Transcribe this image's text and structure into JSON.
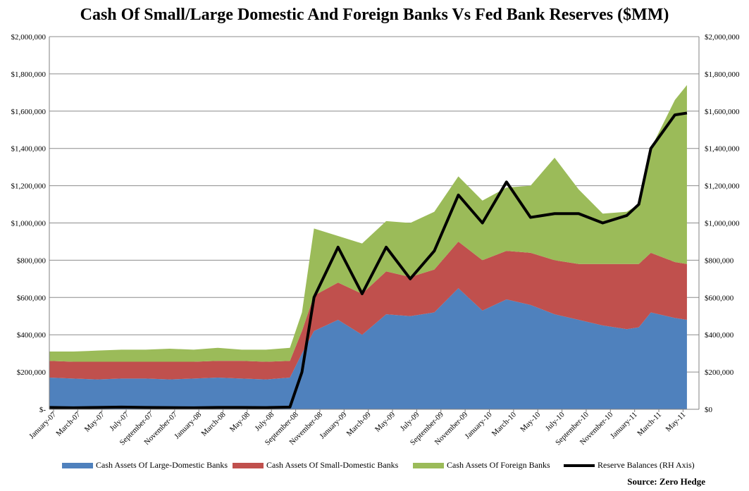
{
  "title": "Cash Of Small/Large Domestic And Foreign Banks Vs Fed Bank Reserves ($MM)",
  "source": "Source: Zero Hedge",
  "colors": {
    "large_domestic": "#4f81bd",
    "small_domestic": "#c0504d",
    "foreign": "#9bbb59",
    "reserves": "#000000",
    "gridline": "#8c8c8c"
  },
  "chart_data": {
    "type": "area",
    "x_tick_labels": [
      "January-07",
      "March-07",
      "May-07",
      "July-07",
      "September-07",
      "November-07",
      "January-08",
      "March-08",
      "May-08",
      "July-08",
      "September-08",
      "November-08",
      "January-09",
      "March-09",
      "May-09",
      "July-09",
      "September-09",
      "November-09",
      "January-10",
      "March-10",
      "May-10",
      "July-10",
      "September-10",
      "November-10",
      "January-11",
      "March-11",
      "May-11"
    ],
    "y_tick_labels_left": [
      "$-",
      "$200,000",
      "$400,000",
      "$600,000",
      "$800,000",
      "$1,000,000",
      "$1,200,000",
      "$1,400,000",
      "$1,600,000",
      "$1,800,000",
      "$2,000,000"
    ],
    "y_tick_labels_right": [
      "$0",
      "$200,000",
      "$400,000",
      "$600,000",
      "$800,000",
      "$1,000,000",
      "$1,200,000",
      "$1,400,000",
      "$1,600,000",
      "$1,800,000",
      "$2,000,000"
    ],
    "ylim": [
      0,
      2000000
    ],
    "x": [
      "2007-01",
      "2007-03",
      "2007-05",
      "2007-07",
      "2007-09",
      "2007-11",
      "2008-01",
      "2008-03",
      "2008-05",
      "2008-07",
      "2008-09",
      "2008-10",
      "2008-11",
      "2009-01",
      "2009-03",
      "2009-05",
      "2009-07",
      "2009-09",
      "2009-11",
      "2010-01",
      "2010-03",
      "2010-05",
      "2010-07",
      "2010-09",
      "2010-11",
      "2011-01",
      "2011-02",
      "2011-03",
      "2011-05",
      "2011-06"
    ],
    "series": [
      {
        "name": "Cash Assets Of Large-Domestic Banks",
        "kind": "stacked-area",
        "values": [
          170000,
          165000,
          160000,
          165000,
          165000,
          160000,
          165000,
          170000,
          165000,
          160000,
          170000,
          300000,
          420000,
          480000,
          400000,
          510000,
          500000,
          520000,
          650000,
          530000,
          590000,
          560000,
          510000,
          480000,
          450000,
          430000,
          440000,
          520000,
          490000,
          480000
        ]
      },
      {
        "name": "Cash Assets Of Small-Domestic Banks",
        "kind": "stacked-area",
        "values": [
          90000,
          90000,
          95000,
          90000,
          90000,
          95000,
          90000,
          90000,
          95000,
          95000,
          90000,
          120000,
          190000,
          200000,
          220000,
          230000,
          210000,
          230000,
          250000,
          270000,
          260000,
          280000,
          290000,
          300000,
          330000,
          350000,
          340000,
          320000,
          300000,
          300000
        ]
      },
      {
        "name": "Cash Assets Of Foreign Banks",
        "kind": "stacked-area",
        "values": [
          50000,
          55000,
          60000,
          65000,
          65000,
          70000,
          65000,
          70000,
          60000,
          65000,
          70000,
          100000,
          360000,
          250000,
          270000,
          270000,
          290000,
          310000,
          350000,
          320000,
          340000,
          360000,
          550000,
          400000,
          270000,
          280000,
          320000,
          560000,
          870000,
          960000
        ]
      },
      {
        "name": "Reserve Balances (RH Axis)",
        "kind": "line",
        "axis": "right",
        "values": [
          10000,
          8000,
          10000,
          12000,
          10000,
          9000,
          8000,
          10000,
          10000,
          9000,
          12000,
          200000,
          600000,
          870000,
          620000,
          870000,
          700000,
          850000,
          1150000,
          1000000,
          1220000,
          1030000,
          1050000,
          1050000,
          1000000,
          1040000,
          1100000,
          1400000,
          1580000,
          1590000
        ]
      }
    ],
    "grid": true,
    "legend_position": "bottom"
  }
}
